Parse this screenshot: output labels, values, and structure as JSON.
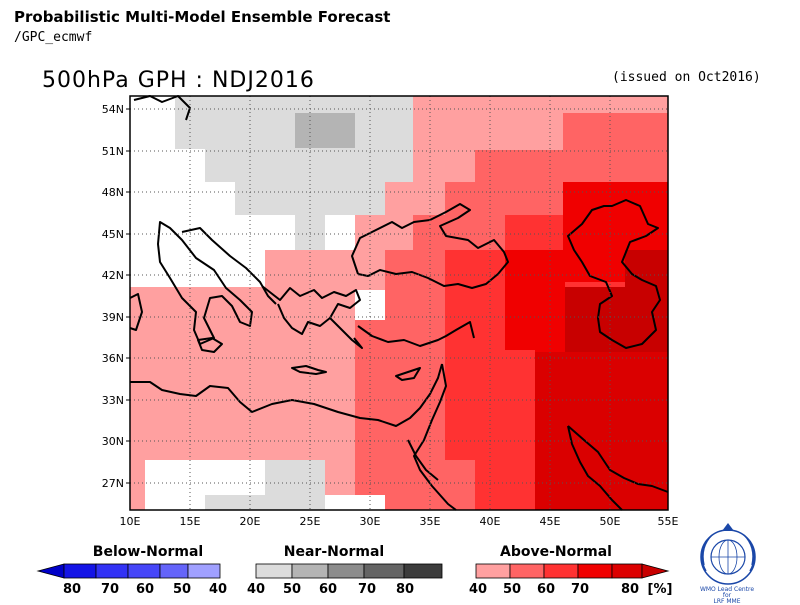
{
  "title": "Probabilistic Multi-Model Ensemble Forecast",
  "source": "/GPC_ecmwf",
  "variable_title": "500hPa GPH : NDJ2016",
  "issued": "(issued on Oct2016)",
  "map": {
    "lon_range": [
      10,
      55
    ],
    "lat_range": [
      25,
      55
    ],
    "lon_ticks": [
      10,
      15,
      20,
      25,
      30,
      35,
      40,
      45,
      50,
      55
    ],
    "lon_tick_labels": [
      "10E",
      "15E",
      "20E",
      "25E",
      "30E",
      "35E",
      "40E",
      "45E",
      "50E",
      "55E"
    ],
    "lat_ticks": [
      27,
      30,
      33,
      36,
      39,
      42,
      45,
      48,
      51,
      54
    ],
    "lat_tick_labels": [
      "27N",
      "30N",
      "33N",
      "36N",
      "39N",
      "42N",
      "45N",
      "48N",
      "51N",
      "54N"
    ],
    "grid": "dotted"
  },
  "legend": {
    "below": {
      "label": "Below-Normal",
      "ticks": [
        "80",
        "70",
        "60",
        "50",
        "40"
      ],
      "colors": [
        "#0000c8",
        "#1414e6",
        "#3232f5",
        "#6464fa",
        "#a0a0ff"
      ]
    },
    "near": {
      "label": "Near-Normal",
      "ticks": [
        "40",
        "50",
        "60",
        "70",
        "80"
      ],
      "colors": [
        "#dcdcdc",
        "#b4b4b4",
        "#8c8c8c",
        "#646464",
        "#3c3c3c"
      ]
    },
    "above": {
      "label": "Above-Normal",
      "ticks": [
        "40",
        "50",
        "60",
        "70",
        "80"
      ],
      "unit": "[%]",
      "colors": [
        "#ffa0a0",
        "#ff6464",
        "#ff3232",
        "#f00000",
        "#c80000"
      ]
    }
  },
  "logo": {
    "text_line1": "WMO Lead Centre for",
    "text_line2": "LRF MME"
  }
}
